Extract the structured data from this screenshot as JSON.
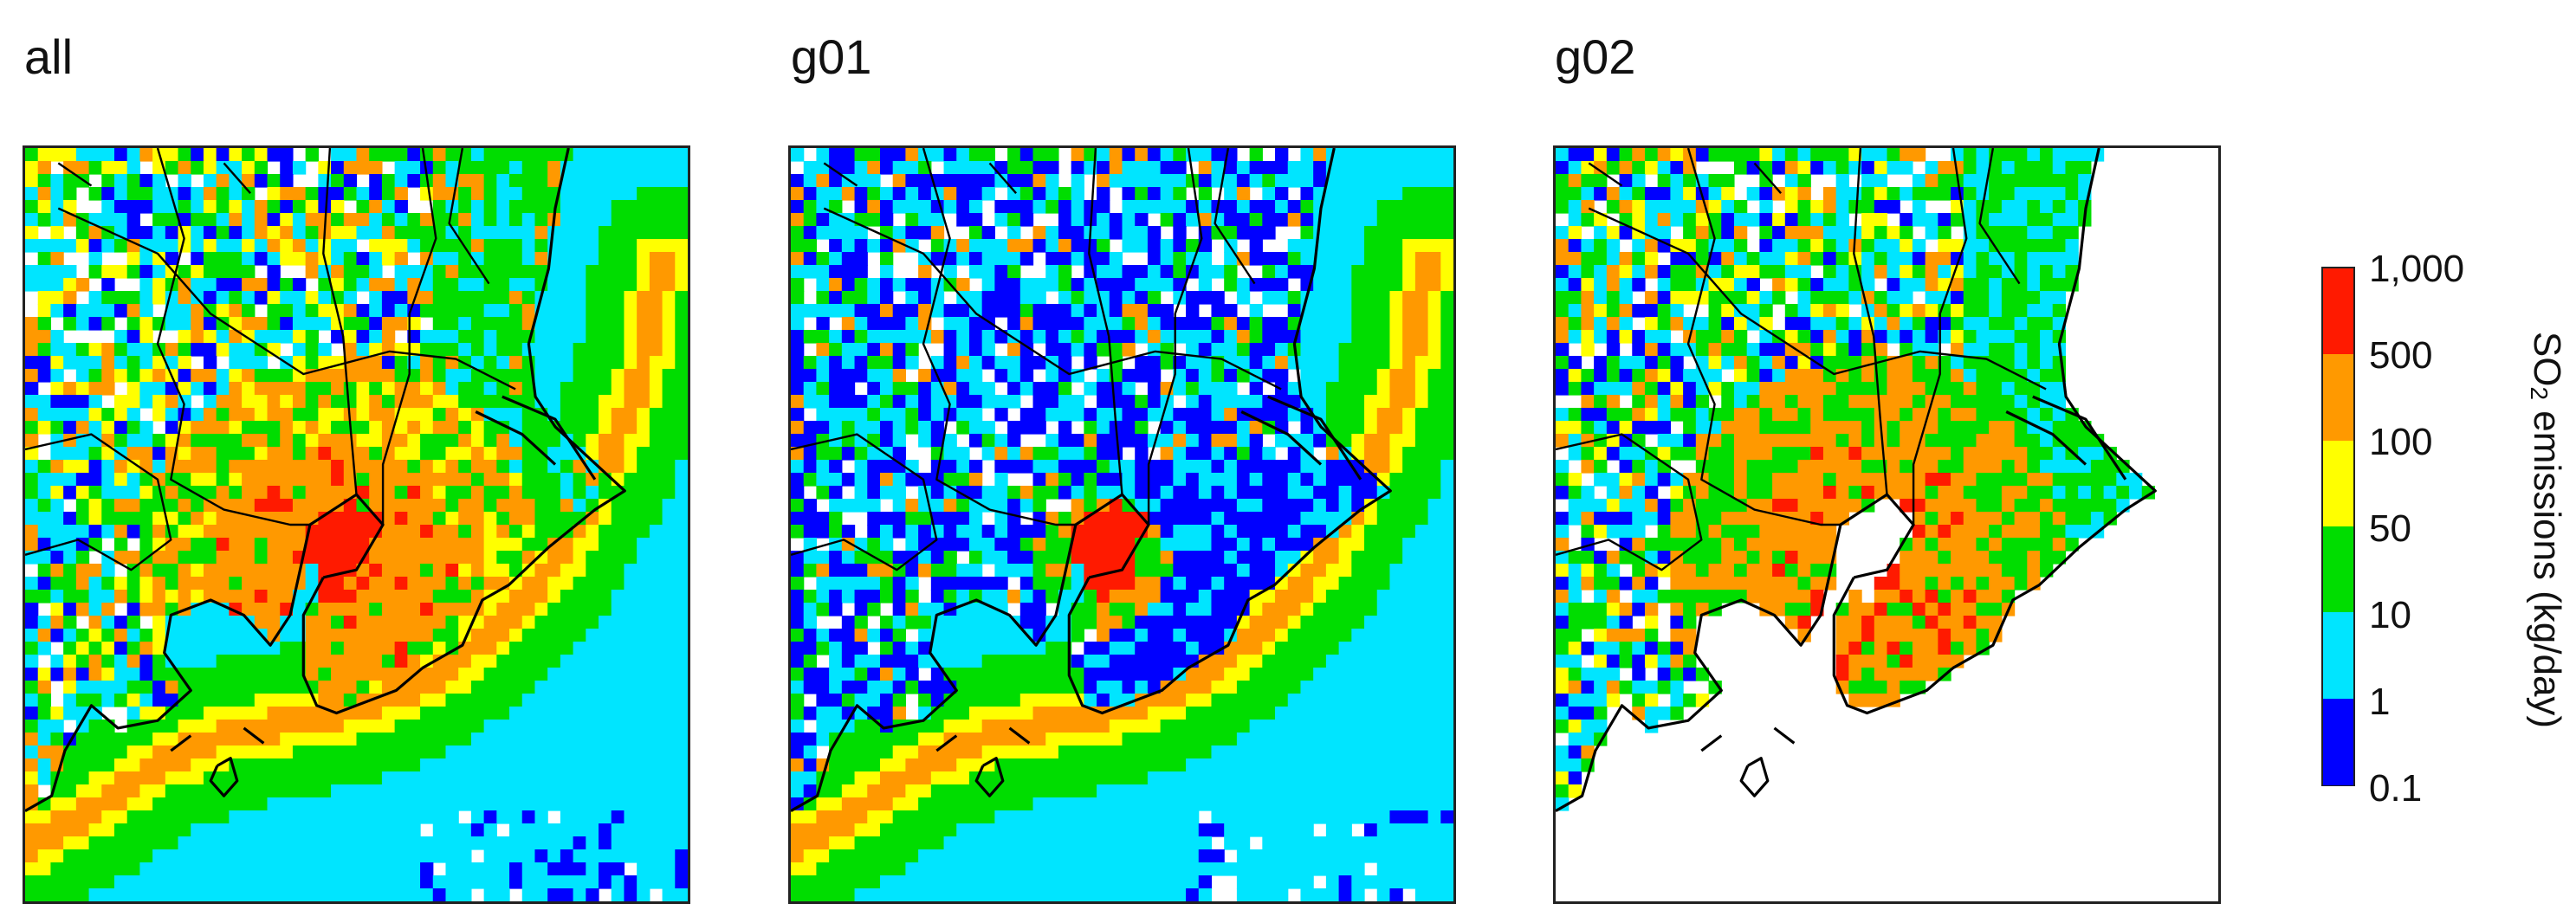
{
  "chart_data": {
    "type": "heatmap",
    "panels": [
      {
        "title": "all"
      },
      {
        "title": "g01"
      },
      {
        "title": "g02"
      }
    ],
    "colorbar": {
      "title_prefix": "SO",
      "title_subscript": "2",
      "title_suffix": " emissions (kg/day)",
      "tick_labels": [
        "1,000",
        "500",
        "100",
        "50",
        "10",
        "1",
        "0.1"
      ],
      "bins": [
        {
          "range": "500-1,000",
          "color": "#ff1a00"
        },
        {
          "range": "100-500",
          "color": "#ff9900"
        },
        {
          "range": "50-100",
          "color": "#ffff00"
        },
        {
          "range": "10-50",
          "color": "#00dd00"
        },
        {
          "range": "1-10",
          "color": "#00e5ff"
        },
        {
          "range": "0.1-1",
          "color": "#0000ff"
        }
      ]
    }
  }
}
